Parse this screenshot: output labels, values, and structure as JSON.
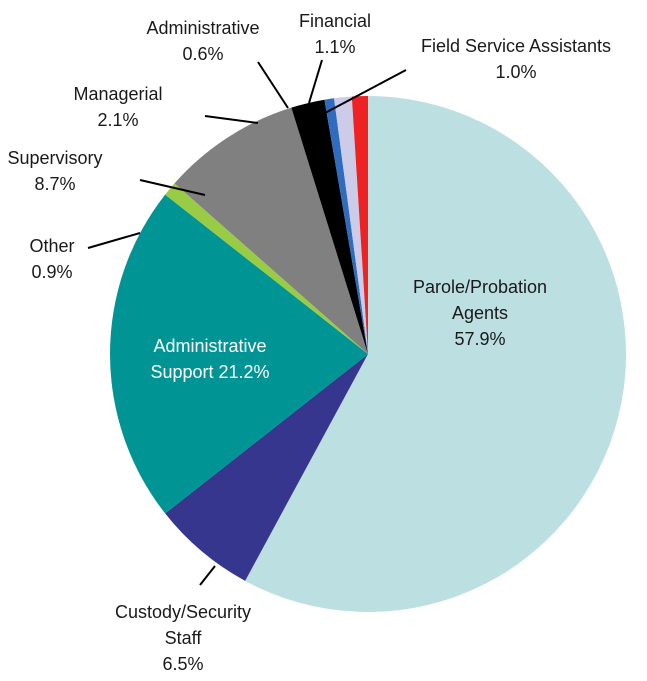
{
  "chart_data": {
    "type": "pie",
    "title": "",
    "series": [
      {
        "slices": [
          {
            "label": "Parole/Probation Agents",
            "label_lines": [
              "Parole/Probation",
              "Agents",
              "57.9%"
            ],
            "value": 57.9,
            "color": "#bcdfe2"
          },
          {
            "label": "Custody/Security Staff",
            "label_lines": [
              "Custody/Security",
              "Staff",
              "6.5%"
            ],
            "value": 6.5,
            "color": "#36368f"
          },
          {
            "label": "Administrative Support",
            "label_lines": [
              "Administrative",
              "Support  21.2%"
            ],
            "value": 21.2,
            "color": "#009494"
          },
          {
            "label": "Other",
            "label_lines": [
              "Other",
              "0.9%"
            ],
            "value": 0.9,
            "color": "#99cc44"
          },
          {
            "label": "Supervisory",
            "label_lines": [
              "Supervisory",
              "8.7%"
            ],
            "value": 8.7,
            "color": "#808080"
          },
          {
            "label": "Managerial",
            "label_lines": [
              "Managerial",
              "2.1%"
            ],
            "value": 2.1,
            "color": "#000000"
          },
          {
            "label": "Administrative",
            "label_lines": [
              "Administrative",
              "0.6%"
            ],
            "value": 0.6,
            "color": "#2f6cbf"
          },
          {
            "label": "Financial",
            "label_lines": [
              "Financial",
              "1.1%"
            ],
            "value": 1.1,
            "color": "#cccce8"
          },
          {
            "label": "Field Service Assistants",
            "label_lines": [
              "Field Service Assistants",
              "1.0%"
            ],
            "value": 1.0,
            "color": "#ee2222"
          }
        ]
      }
    ]
  }
}
